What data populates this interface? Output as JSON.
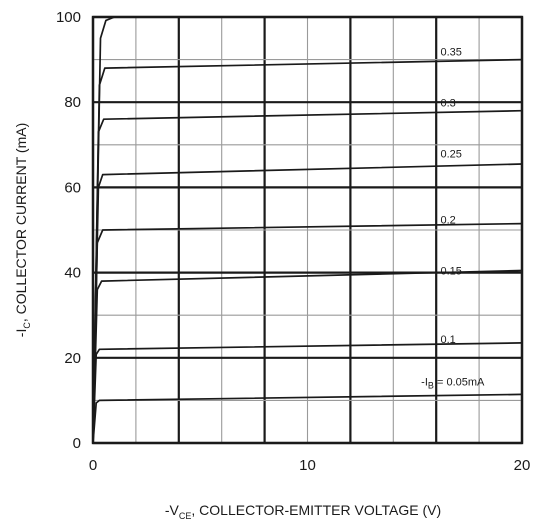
{
  "chart_data": {
    "type": "line",
    "title": "",
    "xlabel": {
      "prefix": "-V",
      "sub": "CE",
      "suffix": ", COLLECTOR-EMITTER VOLTAGE (V)"
    },
    "ylabel": {
      "prefix": "-I",
      "sub": "C",
      "suffix": ", COLLECTOR CURRENT (mA)"
    },
    "xlim": [
      0,
      20
    ],
    "ylim": [
      0,
      100
    ],
    "xticks": [
      "0",
      "10",
      "20"
    ],
    "yticks": [
      "0",
      "20",
      "40",
      "60",
      "80",
      "100"
    ],
    "grid": true,
    "series": [
      {
        "label_prefix": "-I",
        "label_sub": "B",
        "label_suffix": " = 0.05mA",
        "name": "-IB = 0.05mA",
        "x": [
          0,
          0.15,
          0.3,
          20
        ],
        "y": [
          0,
          9.4,
          10.0,
          11.4
        ]
      },
      {
        "name": "0.1",
        "x": [
          0,
          0.15,
          0.3,
          20
        ],
        "y": [
          0,
          20.8,
          22.0,
          23.5
        ]
      },
      {
        "name": "0.15",
        "x": [
          0,
          0.2,
          0.4,
          20
        ],
        "y": [
          0,
          36.0,
          38.0,
          40.5
        ]
      },
      {
        "name": "0.2",
        "x": [
          0,
          0.2,
          0.45,
          20
        ],
        "y": [
          0,
          47.0,
          50.0,
          51.5
        ]
      },
      {
        "name": "0.25",
        "x": [
          0,
          0.25,
          0.45,
          20
        ],
        "y": [
          0,
          60.0,
          63.0,
          65.5
        ]
      },
      {
        "name": "0.3",
        "x": [
          0,
          0.25,
          0.5,
          20
        ],
        "y": [
          0,
          73.0,
          76.0,
          78.0
        ]
      },
      {
        "name": "0.35",
        "x": [
          0,
          0.3,
          0.55,
          20
        ],
        "y": [
          0,
          84.0,
          88.0,
          90.0
        ]
      },
      {
        "name": "",
        "x": [
          0,
          0.35,
          0.6,
          1.0
        ],
        "y": [
          0,
          95.0,
          99.2,
          100.0
        ]
      }
    ],
    "curve_labels": [
      {
        "text_prefix": "-I",
        "text_sub": "B",
        "text_suffix": " = 0.05mA",
        "x": 15.3,
        "y": 13.5
      },
      {
        "text": "0.1",
        "x": 16.2,
        "y": 23.5
      },
      {
        "text": "0.15",
        "x": 16.2,
        "y": 39.5
      },
      {
        "text": "0.2",
        "x": 16.2,
        "y": 51.5
      },
      {
        "text": "0.25",
        "x": 16.2,
        "y": 67.0
      },
      {
        "text": "0.3",
        "x": 16.2,
        "y": 79.0
      },
      {
        "text": "0.35",
        "x": 16.2,
        "y": 91.0
      }
    ]
  }
}
